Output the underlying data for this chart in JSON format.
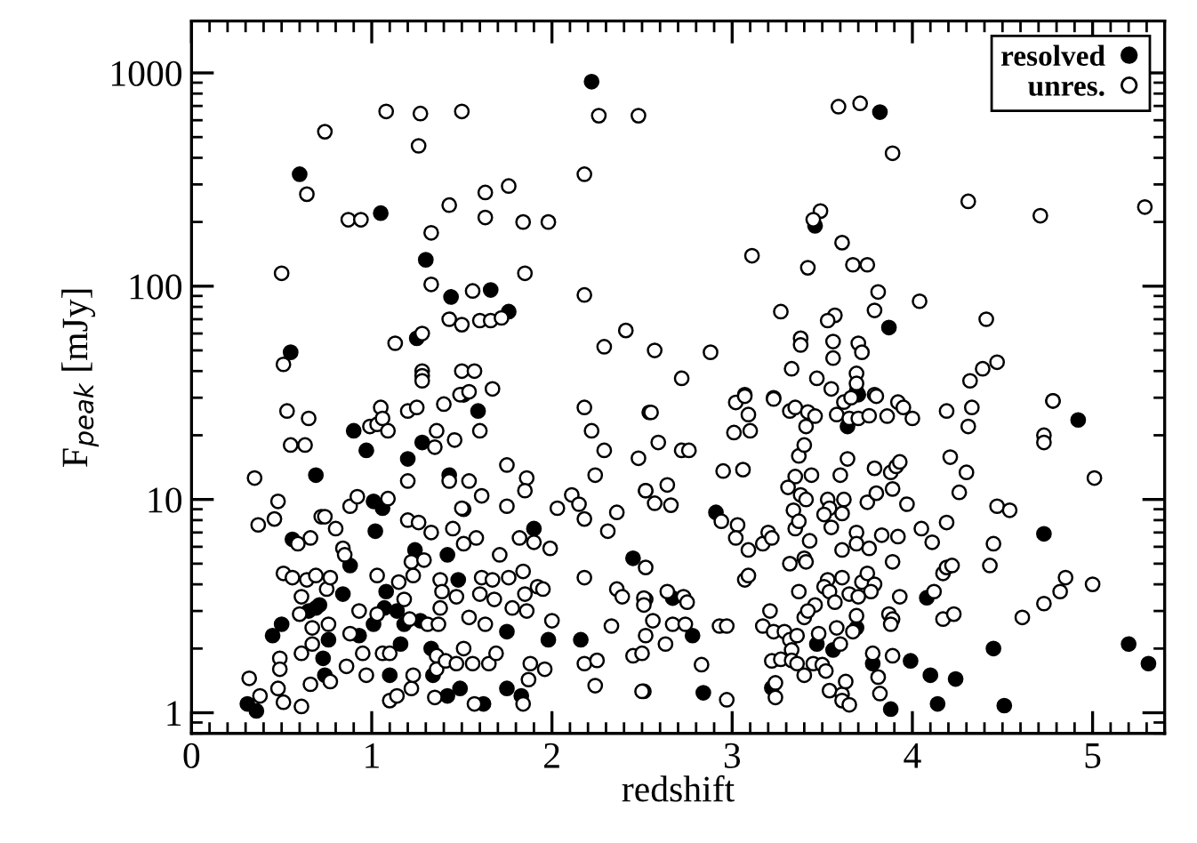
{
  "chart_data": {
    "type": "scatter",
    "xlabel": "redshift",
    "ylabel": "F$_{peak}$ [mJy]",
    "log": "y",
    "xlim": [
      0,
      5.4
    ],
    "ylim": [
      0.8,
      1750
    ],
    "xticks": [
      0,
      1,
      2,
      3,
      4,
      5
    ],
    "yticks": [
      1,
      10,
      100,
      1000
    ],
    "marker": "circle",
    "legend": "top right",
    "grid": false,
    "series": [
      {
        "name": "resolved",
        "color": "#000000",
        "x": [
          2.22,
          0.6,
          1.05,
          1.3,
          1.44,
          1.66,
          1.76,
          1.25,
          0.55,
          1.51,
          3.82,
          3.46,
          3.87,
          3.69,
          0.31,
          0.36,
          0.45,
          0.5,
          0.56,
          0.69,
          0.65,
          0.69,
          0.71,
          0.74,
          0.76,
          0.73,
          0.84,
          0.88,
          0.9,
          0.97,
          0.93,
          1.01,
          1.01,
          1.06,
          1.02,
          1.07,
          1.08,
          1.1,
          1.14,
          1.16,
          1.18,
          1.2,
          1.24,
          1.27,
          1.28,
          1.33,
          1.34,
          1.42,
          1.43,
          1.42,
          1.48,
          1.49,
          1.51,
          1.51,
          1.59,
          1.62,
          1.75,
          1.75,
          1.83,
          1.9,
          1.98,
          2.16,
          2.45,
          3.7,
          3.64,
          2.91,
          2.67,
          2.78,
          2.84,
          3.22,
          3.47,
          3.56,
          3.69,
          3.78,
          3.88,
          3.99,
          4.1,
          4.14,
          4.24,
          4.08,
          4.45,
          4.51,
          4.73,
          4.92,
          5.2,
          5.31
        ],
        "values": [
          910,
          335,
          220,
          133,
          89,
          96,
          76,
          57,
          49,
          31,
          655,
          192,
          64,
          32,
          1.1,
          1.02,
          2.3,
          2.6,
          6.5,
          13,
          3.0,
          3.1,
          3.2,
          1.5,
          2.2,
          1.8,
          3.6,
          4.9,
          21,
          17,
          2.3,
          2.6,
          9.8,
          9.1,
          7.1,
          3.1,
          3.7,
          1.5,
          3.0,
          2.1,
          2.6,
          15.5,
          5.8,
          2.7,
          18.5,
          2.0,
          1.5,
          1.2,
          13,
          5.5,
          4.2,
          1.3,
          9.0,
          31,
          26,
          1.1,
          2.4,
          1.3,
          1.2,
          7.3,
          2.2,
          2.2,
          5.3,
          31,
          22,
          8.7,
          3.45,
          2.3,
          1.24,
          1.31,
          2.1,
          1.97,
          2.5,
          1.7,
          1.04,
          1.75,
          1.5,
          1.1,
          1.44,
          3.46,
          2.0,
          1.08,
          6.9,
          23.6,
          2.1,
          1.7
        ]
      },
      {
        "name": "unres.",
        "color": "#ffffff",
        "x": [
          1.08,
          1.27,
          1.5,
          0.74,
          1.26,
          0.64,
          0.87,
          0.94,
          1.43,
          1.63,
          1.76,
          1.63,
          1.33,
          1.84,
          1.98,
          0.5,
          1.33,
          1.56,
          1.85,
          2.18,
          2.26,
          2.48,
          2.18,
          1.43,
          1.5,
          1.6,
          1.66,
          1.72,
          1.28,
          1.13,
          2.29,
          2.41,
          0.51,
          1.28,
          1.28,
          1.28,
          1.5,
          1.57,
          1.49,
          1.54,
          1.67,
          3.59,
          3.71,
          3.89,
          4.31,
          4.71,
          5.29,
          3.49,
          3.45,
          3.61,
          3.11,
          3.42,
          3.67,
          3.75,
          3.81,
          4.04,
          3.27,
          3.57,
          3.53,
          3.79,
          4.41,
          2.57,
          2.88,
          3.38,
          3.38,
          3.56,
          3.7,
          3.72,
          3.56,
          4.47,
          4.39,
          2.72,
          3.33,
          3.47,
          3.69,
          3.69,
          4.32,
          3.55,
          3.79,
          3.07,
          3.23,
          4.78,
          0.35,
          0.32,
          0.38,
          0.37,
          0.48,
          0.46,
          0.53,
          0.55,
          0.65,
          0.63,
          0.51,
          0.56,
          0.61,
          0.6,
          0.64,
          0.69,
          0.59,
          0.66,
          0.72,
          0.74,
          0.8,
          0.75,
          0.77,
          0.76,
          0.67,
          0.61,
          0.49,
          0.49,
          0.48,
          0.51,
          0.61,
          0.66,
          0.67,
          0.77,
          0.86,
          0.84,
          0.85,
          0.88,
          0.92,
          0.93,
          0.88,
          0.95,
          0.97,
          0.99,
          1.03,
          1.05,
          1.06,
          1.09,
          1.09,
          1.03,
          1.03,
          1.06,
          1.1,
          1.1,
          1.14,
          1.15,
          1.18,
          1.2,
          1.25,
          1.2,
          1.2,
          1.23,
          1.22,
          1.21,
          1.22,
          1.23,
          1.26,
          1.29,
          1.31,
          1.36,
          1.35,
          1.4,
          1.38,
          1.39,
          1.33,
          1.38,
          1.37,
          1.36,
          1.36,
          1.41,
          1.35,
          1.43,
          1.46,
          1.45,
          1.47,
          1.47,
          1.51,
          1.5,
          1.51,
          1.54,
          1.54,
          1.56,
          1.57,
          1.58,
          1.6,
          1.61,
          1.61,
          1.6,
          1.63,
          1.65,
          1.67,
          1.68,
          1.69,
          1.71,
          1.75,
          1.75,
          1.76,
          1.78,
          1.82,
          1.84,
          1.85,
          1.86,
          1.86,
          1.85,
          1.88,
          1.87,
          1.84,
          1.9,
          1.92,
          1.95,
          1.96,
          1.99,
          2.0,
          2.03,
          2.11,
          2.15,
          2.18,
          2.18,
          2.22,
          2.24,
          2.18,
          2.18,
          2.25,
          2.24,
          2.29,
          2.31,
          2.33,
          2.36,
          2.36,
          2.39,
          2.45,
          2.48,
          2.5,
          2.51,
          2.52,
          2.54,
          2.52,
          2.55,
          2.59,
          2.72,
          2.76,
          2.52,
          2.57,
          2.64,
          2.66,
          2.95,
          3.06,
          3.02,
          3.07,
          3.09,
          3.01,
          3.1,
          3.23,
          2.94,
          3.03,
          3.02,
          3.09,
          3.17,
          3.2,
          3.22,
          3.07,
          3.09,
          2.52,
          2.51,
          2.51,
          2.56,
          2.52,
          2.64,
          2.63,
          2.73,
          2.75,
          2.67,
          2.74,
          2.83,
          2.5,
          2.97,
          2.93,
          2.97,
          3.21,
          3.17,
          3.23,
          3.29,
          3.32,
          3.36,
          3.33,
          3.22,
          3.27,
          3.33,
          3.36,
          3.24,
          3.24,
          3.32,
          3.35,
          3.42,
          3.46,
          3.41,
          3.37,
          3.4,
          3.35,
          3.31,
          3.44,
          3.38,
          3.41,
          3.34,
          3.35,
          3.37,
          3.43,
          3.32,
          3.4,
          3.41,
          3.37,
          3.46,
          3.4,
          3.42,
          3.48,
          3.45,
          3.4,
          3.5,
          3.52,
          3.53,
          3.51,
          3.54,
          3.57,
          3.58,
          3.6,
          3.54,
          3.61,
          3.61,
          3.65,
          3.63,
          3.67,
          3.69,
          3.61,
          3.65,
          3.72,
          3.75,
          3.79,
          3.77,
          3.7,
          3.69,
          3.69,
          3.76,
          3.61,
          3.61,
          3.62,
          3.53,
          3.54,
          3.51,
          3.55,
          3.6,
          3.64,
          3.58,
          3.65,
          3.7,
          3.76,
          3.62,
          3.66,
          3.8,
          3.75,
          3.8,
          3.79,
          3.83,
          3.86,
          3.88,
          3.91,
          3.93,
          3.92,
          3.93,
          3.89,
          3.97,
          3.92,
          3.95,
          4.0,
          3.89,
          3.87,
          3.89,
          3.88,
          3.78,
          3.81,
          3.82,
          3.89,
          4.05,
          4.11,
          4.12,
          4.17,
          4.19,
          4.22,
          4.17,
          4.23,
          4.19,
          4.21,
          4.3,
          4.26,
          4.19,
          4.33,
          4.31,
          4.43,
          4.45,
          4.47,
          4.54,
          4.61,
          4.73,
          4.82,
          4.85,
          5.0,
          5.01,
          4.73,
          4.73,
          4.78
        ],
        "values": [
          660,
          645,
          660,
          530,
          455,
          270,
          205,
          205,
          240,
          275,
          295,
          210,
          178,
          200,
          200,
          115,
          102,
          95,
          115,
          91,
          630,
          630,
          335,
          70,
          66,
          69,
          69,
          71,
          60,
          54,
          52,
          62,
          43,
          40,
          38,
          36,
          40,
          40,
          31,
          32,
          33,
          695,
          720,
          420,
          250,
          214,
          235,
          225,
          205,
          160,
          139,
          122,
          126,
          126,
          94,
          85,
          76,
          73,
          69,
          77,
          70,
          50,
          49,
          57,
          53,
          55,
          54,
          49,
          46,
          44,
          41,
          37,
          41,
          37,
          39,
          35,
          36,
          33,
          31,
          31,
          30,
          29,
          12.6,
          1.45,
          1.2,
          7.6,
          9.8,
          8.1,
          26,
          18,
          24,
          18,
          4.5,
          4.3,
          3.5,
          2.9,
          4.2,
          4.4,
          6.2,
          6.6,
          8.3,
          8.3,
          7.3,
          3.8,
          4.3,
          2.6,
          2.5,
          1.9,
          1.8,
          1.6,
          1.3,
          1.12,
          1.07,
          1.36,
          2.1,
          1.4,
          1.65,
          5.9,
          5.5,
          9.3,
          10.3,
          3.0,
          2.35,
          1.9,
          1.5,
          22,
          22.5,
          27,
          24,
          21,
          10.1,
          4.4,
          2.9,
          1.9,
          1.9,
          1.14,
          1.2,
          4.1,
          3.4,
          26,
          27,
          12.2,
          8.0,
          4.4,
          5.1,
          2.75,
          1.3,
          1.5,
          7.8,
          5.2,
          2.6,
          21,
          17.6,
          28,
          4.2,
          3.7,
          7.0,
          3.1,
          2.6,
          1.85,
          1.6,
          1.75,
          1.18,
          12.2,
          19,
          7.3,
          3.5,
          1.7,
          6.2,
          9.1,
          2.0,
          12.2,
          2.8,
          1.7,
          1.1,
          6.6,
          21,
          10.4,
          4.3,
          3.6,
          2.6,
          1.7,
          4.2,
          3.4,
          1.9,
          5.5,
          14.5,
          9.3,
          4.3,
          3.1,
          6.6,
          4.6,
          3.6,
          3.0,
          12.6,
          11,
          1.7,
          1.43,
          1.1,
          6.3,
          3.9,
          3.8,
          1.6,
          5.9,
          2.7,
          9.1,
          10.5,
          9.5,
          8.1,
          27,
          21,
          13,
          4.3,
          1.7,
          1.76,
          1.34,
          17,
          7.1,
          2.55,
          8.7,
          3.8,
          3.5,
          1.85,
          15.6,
          1.9,
          1.26,
          11,
          25.6,
          3.4,
          25.6,
          18.5,
          17,
          17,
          11,
          9.6,
          11.7,
          9.4,
          13.6,
          13.8,
          28.5,
          30.5,
          25,
          20.6,
          21,
          29.6,
          7.9,
          7.6,
          6.6,
          5.8,
          6.2,
          7.0,
          6.6,
          4.2,
          4.4,
          4.8,
          3.45,
          3.2,
          2.7,
          2.3,
          3.7,
          2.1,
          3.5,
          3.3,
          2.6,
          2.6,
          1.68,
          1.26,
          1.15,
          2.55,
          2.55,
          3.0,
          2.55,
          2.4,
          2.4,
          2.2,
          2.3,
          1.97,
          1.75,
          1.78,
          1.76,
          1.7,
          1.38,
          1.18,
          26,
          27,
          25.7,
          24.6,
          22,
          16,
          18,
          12.8,
          11.4,
          13,
          10.5,
          10,
          8.9,
          7.3,
          7.9,
          6.4,
          5.0,
          5.3,
          5.1,
          3.7,
          3.2,
          2.8,
          3.0,
          2.35,
          1.7,
          1.5,
          1.68,
          1.57,
          4.2,
          3.9,
          3.7,
          3.3,
          2.5,
          2.1,
          1.27,
          1.22,
          1.14,
          1.09,
          1.4,
          2.4,
          2.85,
          4.3,
          3.6,
          4.1,
          4.5,
          4.0,
          3.7,
          3.5,
          7.0,
          6.2,
          5.9,
          5.8,
          8.6,
          10,
          10,
          9.1,
          8.5,
          7.4,
          13,
          15.5,
          25,
          24,
          24,
          24.7,
          28.6,
          30,
          30.5,
          9.7,
          10.7,
          14,
          6.8,
          24.6,
          13.4,
          14.3,
          15,
          6.7,
          3.5,
          11.2,
          9.5,
          28.6,
          27,
          24,
          5.1,
          2.9,
          2.75,
          2.6,
          1.9,
          1.47,
          1.23,
          1.85,
          7.3,
          6.3,
          3.7,
          4.5,
          4.8,
          4.9,
          2.75,
          2.9,
          7.8,
          15.8,
          13.4,
          10.8,
          26,
          27,
          22,
          4.9,
          6.2,
          9.3,
          8.9,
          2.8,
          3.25,
          3.7,
          4.3,
          4.0,
          12.6,
          20,
          18.5,
          29
        ]
      }
    ]
  }
}
